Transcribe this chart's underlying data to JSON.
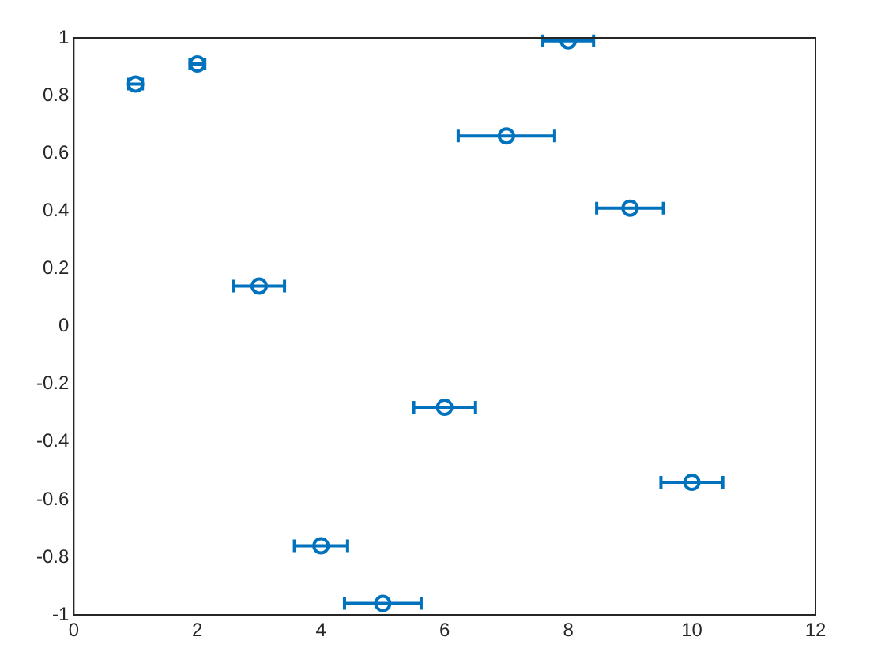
{
  "chart_data": {
    "type": "scatter",
    "x": [
      1,
      2,
      3,
      4,
      5,
      6,
      7,
      8,
      9,
      10
    ],
    "values": [
      0.84,
      0.91,
      0.14,
      -0.76,
      -0.96,
      -0.28,
      0.66,
      0.99,
      0.41,
      -0.54
    ],
    "xerrors": [
      0.11,
      0.12,
      0.41,
      0.43,
      0.62,
      0.5,
      0.78,
      0.41,
      0.54,
      0.5
    ],
    "color": "#0072bd",
    "marker": "circle",
    "xlim": [
      0,
      12
    ],
    "xticks": [
      0,
      2,
      4,
      6,
      8,
      10,
      12
    ],
    "ylim": [
      -1,
      1
    ],
    "yticks": [
      -1,
      -0.8,
      -0.6,
      -0.4,
      -0.2,
      0,
      0.2,
      0.4,
      0.6,
      0.8,
      1
    ],
    "grid": false,
    "legend": false
  }
}
